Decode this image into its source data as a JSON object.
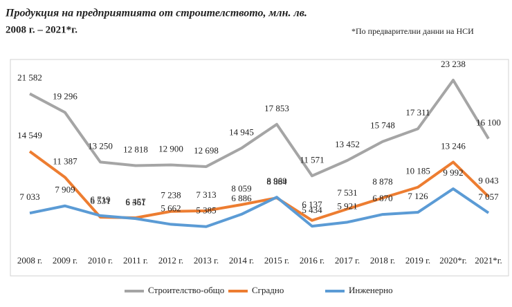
{
  "chart_data": {
    "type": "line",
    "title": "Продукция на предприятията от строителството, млн. лв.",
    "subtitle": "2008 г. – 2021*г.",
    "note": "*По предварителни данни на НСИ",
    "categories": [
      "2008 г.",
      "2009 г.",
      "2010 г.",
      "2011 г.",
      "2012 г.",
      "2013 г.",
      "2014 г.",
      "2015 г.",
      "2016 г.",
      "2017 г.",
      "2018 г.",
      "2019 г.",
      "2020*г.",
      "2021*г."
    ],
    "series": [
      {
        "name": "Строителство-общо",
        "color": "#a5a5a5",
        "values": [
          21582,
          19296,
          13250,
          12818,
          12900,
          12698,
          14945,
          17853,
          11571,
          13452,
          15748,
          17311,
          23238,
          16100
        ],
        "value_labels": [
          "21 582",
          "19 296",
          "13 250",
          "12 818",
          "12 900",
          "12 698",
          "14 945",
          "17 853",
          "11 571",
          "13 452",
          "15 748",
          "17 311",
          "23 238",
          "16 100"
        ]
      },
      {
        "name": "Сградно",
        "color": "#ed7d31",
        "values": [
          14549,
          11387,
          6531,
          6457,
          7238,
          7313,
          8059,
          8884,
          6137,
          7531,
          8878,
          10185,
          13246,
          9043
        ],
        "value_labels": [
          "14 549",
          "11 387",
          "6 531",
          "6 457",
          "7 238",
          "7 313",
          "8 059",
          "8 884",
          "6 137",
          "7 531",
          "8 878",
          "10 185",
          "13 246",
          "9 043"
        ]
      },
      {
        "name": "Инженерно",
        "color": "#5b9bd5",
        "values": [
          7033,
          7909,
          6719,
          6361,
          5662,
          5385,
          6886,
          8969,
          5434,
          5921,
          6870,
          7126,
          9992,
          7057
        ],
        "value_labels": [
          "7 033",
          "7 909",
          "6 719",
          "6 361",
          "5 662",
          "5 385",
          "6 886",
          "8 969",
          "5 434",
          "5 921",
          "6 870",
          "7 126",
          "9 992",
          "7 057"
        ]
      }
    ],
    "ylim": [
      3000,
      25000
    ],
    "legend": "bottom"
  }
}
